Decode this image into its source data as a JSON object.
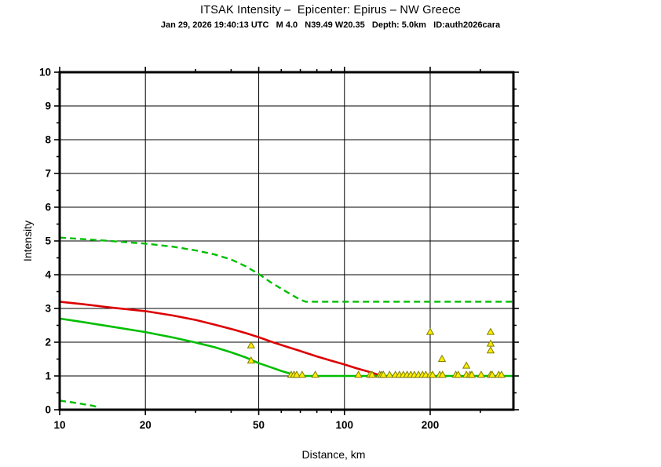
{
  "page": {
    "background": "#ffffff"
  },
  "header": {
    "title": "ITSAK Intensity –  Epicenter: Epirus – NW Greece",
    "subtitle": "Jan 29, 2026 19:40:13 UTC   M 4.0   N39.49 W20.35   Depth: 5.0km   ID:auth2026cara"
  },
  "chart_data": {
    "type": "line",
    "title": "ITSAK Intensity –  Epicenter: Epirus – NW Greece",
    "subtitle": "Jan 29, 2026 19:40:13 UTC   M 4.0   N39.49 W20.35   Depth: 5.0km   ID:auth2026cara",
    "xlabel": "Distance, km",
    "ylabel": "Intensity",
    "x_scale": "log",
    "xlim": [
      10,
      392
    ],
    "ylim": [
      0,
      10
    ],
    "grid": true,
    "legend": "none",
    "x_tick_values": [
      10,
      20,
      50,
      100,
      200
    ],
    "x_tick_labels": [
      "10",
      "20",
      "50",
      "100",
      "200"
    ],
    "x_minor_ticks": [
      30,
      40,
      60,
      70,
      80,
      90,
      300
    ],
    "x_gridlines": [
      20,
      50,
      100,
      200
    ],
    "y_tick_values": [
      0,
      1,
      2,
      3,
      4,
      5,
      6,
      7,
      8,
      9,
      10
    ],
    "y_tick_labels": [
      "0",
      "1",
      "2",
      "3",
      "4",
      "5",
      "6",
      "7",
      "8",
      "9",
      "10"
    ],
    "y_minor_ticks": [
      0.5,
      1.5,
      2.5,
      3.5,
      4.5,
      5.5,
      6.5,
      7.5,
      8.5,
      9.5
    ],
    "y_gridlines": [
      1,
      2,
      3,
      4,
      5,
      6,
      7,
      8,
      9
    ],
    "colors": {
      "red_curve": "#dd0000",
      "green_curve": "#00be00",
      "marker_fill": "#ffee00",
      "marker_stroke": "#7d7d00",
      "grid": "#000000",
      "frame": "#000000"
    },
    "series": [
      {
        "name": "green-dashed-upper-bound",
        "color": "#00be00",
        "style": "dashed",
        "width": 2.4,
        "points": [
          [
            10,
            5.1
          ],
          [
            15,
            5.0
          ],
          [
            20,
            4.92
          ],
          [
            25,
            4.83
          ],
          [
            30,
            4.72
          ],
          [
            35,
            4.6
          ],
          [
            40,
            4.45
          ],
          [
            45,
            4.25
          ],
          [
            50,
            4.02
          ],
          [
            55,
            3.78
          ],
          [
            61,
            3.55
          ],
          [
            66,
            3.38
          ],
          [
            70,
            3.26
          ],
          [
            73,
            3.2
          ],
          [
            390,
            3.2
          ]
        ]
      },
      {
        "name": "green-dashed-lower-bound",
        "color": "#00be00",
        "style": "dashed",
        "width": 2.4,
        "points": [
          [
            10,
            0.27
          ],
          [
            11,
            0.22
          ],
          [
            12,
            0.17
          ],
          [
            13,
            0.12
          ],
          [
            13.6,
            0.08
          ]
        ]
      },
      {
        "name": "red-solid-curve",
        "color": "#dd0000",
        "style": "solid",
        "width": 2.6,
        "points": [
          [
            10,
            3.2
          ],
          [
            12,
            3.13
          ],
          [
            15,
            3.03
          ],
          [
            20,
            2.92
          ],
          [
            25,
            2.79
          ],
          [
            30,
            2.66
          ],
          [
            35,
            2.52
          ],
          [
            41,
            2.37
          ],
          [
            45,
            2.27
          ],
          [
            50,
            2.15
          ],
          [
            56,
            2.0
          ],
          [
            63,
            1.86
          ],
          [
            70,
            1.74
          ],
          [
            80,
            1.58
          ],
          [
            90,
            1.45
          ],
          [
            100,
            1.34
          ],
          [
            110,
            1.23
          ],
          [
            120,
            1.14
          ],
          [
            130,
            1.05
          ],
          [
            138,
            1.0
          ]
        ]
      },
      {
        "name": "green-solid-curve",
        "color": "#00be00",
        "style": "solid",
        "width": 2.6,
        "points": [
          [
            10,
            2.7
          ],
          [
            12,
            2.6
          ],
          [
            15,
            2.47
          ],
          [
            20,
            2.3
          ],
          [
            25,
            2.14
          ],
          [
            30,
            1.99
          ],
          [
            35,
            1.85
          ],
          [
            40,
            1.7
          ],
          [
            45,
            1.55
          ],
          [
            50,
            1.38
          ],
          [
            55,
            1.26
          ],
          [
            60,
            1.15
          ],
          [
            65,
            1.06
          ],
          [
            69,
            1.0
          ],
          [
            390,
            1.0
          ]
        ]
      }
    ],
    "markers": {
      "symbol": "triangle",
      "fill": "#ffee00",
      "stroke": "#7d7d00",
      "points": [
        [
          47,
          1.9
        ],
        [
          47,
          1.45
        ],
        [
          65,
          1.03
        ],
        [
          66.5,
          1.03
        ],
        [
          68,
          1.03
        ],
        [
          71,
          1.03
        ],
        [
          79,
          1.03
        ],
        [
          112,
          1.03
        ],
        [
          123,
          1.03
        ],
        [
          125,
          1.03
        ],
        [
          133,
          1.03
        ],
        [
          135,
          1.03
        ],
        [
          137,
          1.03
        ],
        [
          144,
          1.03
        ],
        [
          151,
          1.03
        ],
        [
          156,
          1.03
        ],
        [
          161,
          1.03
        ],
        [
          166,
          1.03
        ],
        [
          171,
          1.03
        ],
        [
          176,
          1.03
        ],
        [
          182,
          1.03
        ],
        [
          188,
          1.03
        ],
        [
          193,
          1.03
        ],
        [
          200,
          1.03
        ],
        [
          204,
          1.03
        ],
        [
          216,
          1.03
        ],
        [
          221,
          1.03
        ],
        [
          246,
          1.03
        ],
        [
          251,
          1.03
        ],
        [
          268,
          1.03
        ],
        [
          276,
          1.03
        ],
        [
          280,
          1.03
        ],
        [
          302,
          1.03
        ],
        [
          326,
          1.03
        ],
        [
          330,
          1.03
        ],
        [
          348,
          1.03
        ],
        [
          356,
          1.03
        ],
        [
          200,
          2.3
        ],
        [
          220,
          1.5
        ],
        [
          268,
          1.3
        ],
        [
          326,
          2.3
        ],
        [
          326,
          1.95
        ],
        [
          326,
          1.75
        ]
      ]
    }
  }
}
